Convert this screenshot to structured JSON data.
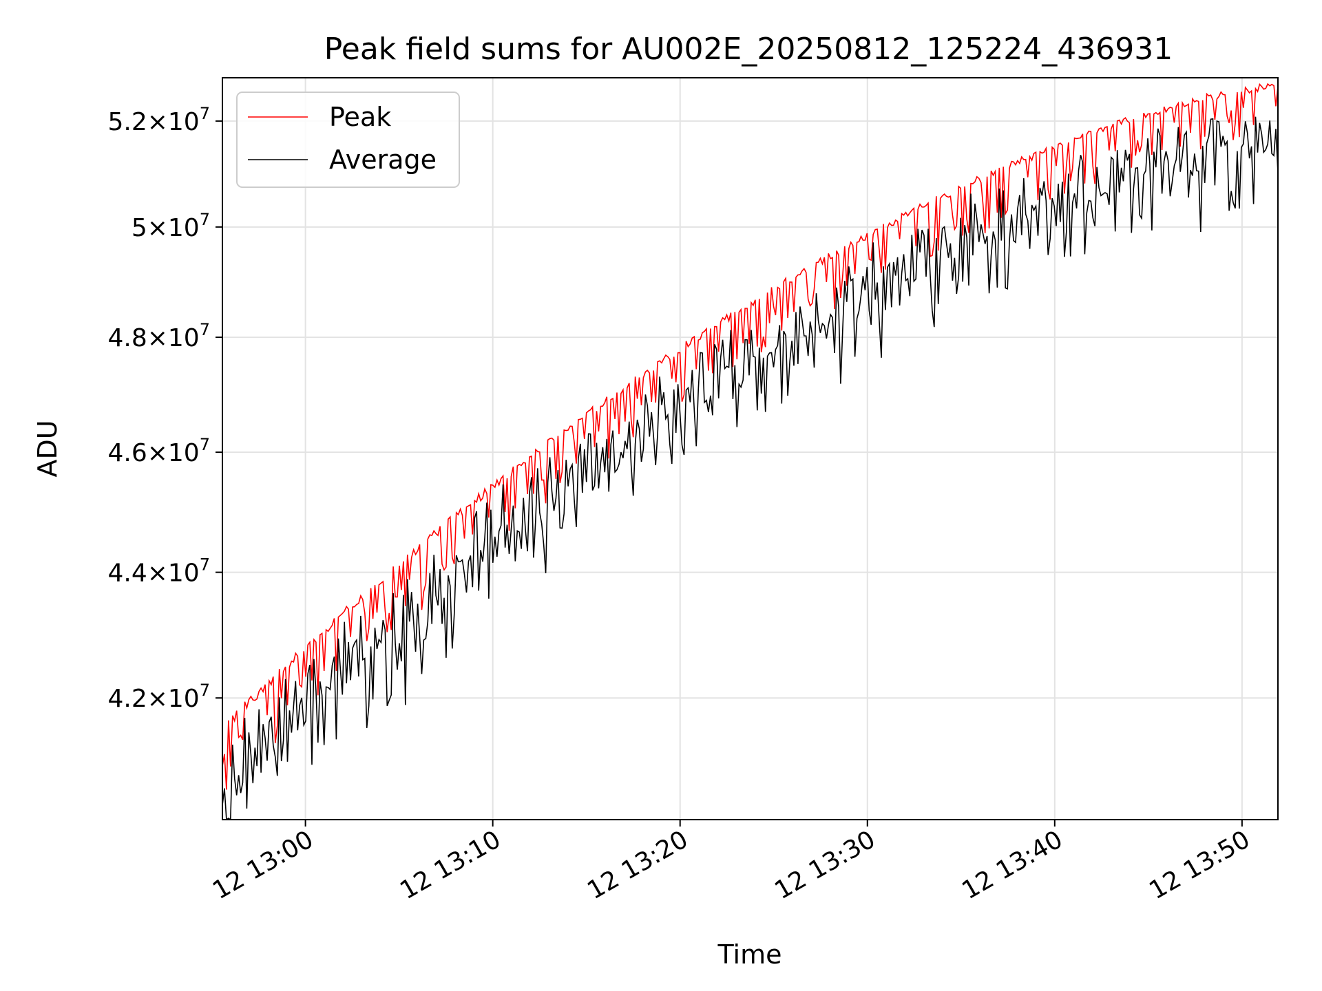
{
  "chart_data": {
    "type": "line",
    "title": "Peak field sums for AU002E_20250812_125224_436931",
    "xlabel": "Time",
    "ylabel": "ADU",
    "y_scale": "log",
    "grid": true,
    "legend_position": "top-left",
    "xlim": [
      "2025-08-12 12:55:34",
      "2025-08-12 13:51:55"
    ],
    "ylim": [
      40150000,
      52840000
    ],
    "x_ticks": [
      {
        "value": "2025-08-12 13:00",
        "label": "12 13:00"
      },
      {
        "value": "2025-08-12 13:10",
        "label": "12 13:10"
      },
      {
        "value": "2025-08-12 13:20",
        "label": "12 13:20"
      },
      {
        "value": "2025-08-12 13:30",
        "label": "12 13:30"
      },
      {
        "value": "2025-08-12 13:40",
        "label": "12 13:40"
      },
      {
        "value": "2025-08-12 13:50",
        "label": "12 13:50"
      }
    ],
    "y_ticks": [
      {
        "value": 42000000,
        "mantissa": "4.2",
        "times": "×",
        "base": "10",
        "exponent": "7"
      },
      {
        "value": 44000000,
        "mantissa": "4.4",
        "times": "×",
        "base": "10",
        "exponent": "7"
      },
      {
        "value": 46000000,
        "mantissa": "4.6",
        "times": "×",
        "base": "10",
        "exponent": "7"
      },
      {
        "value": 48000000,
        "mantissa": "4.8",
        "times": "×",
        "base": "10",
        "exponent": "7"
      },
      {
        "value": 50000000,
        "mantissa": "5",
        "times": "×",
        "base": "10",
        "exponent": "7"
      },
      {
        "value": 52000000,
        "mantissa": "5.2",
        "times": "×",
        "base": "10",
        "exponent": "7"
      }
    ],
    "series": [
      {
        "name": "Peak",
        "color": "#ff0000",
        "trend_start": 41600000,
        "trend_end": 52750000,
        "drop_amplitude": 700000,
        "drop_rate": 0.33
      },
      {
        "name": "Average",
        "color": "#000000",
        "offset_start": 1100000,
        "offset_end": 1300000,
        "noise": 550000
      }
    ],
    "point_count": 520
  }
}
